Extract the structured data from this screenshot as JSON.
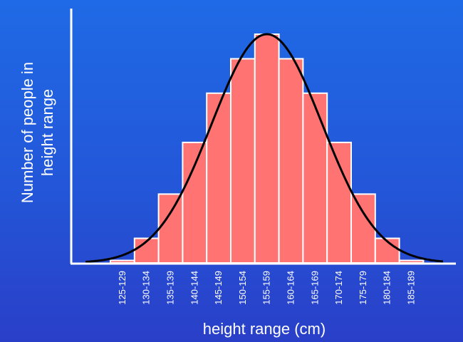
{
  "chart_data": {
    "type": "bar",
    "categories": [
      "125-129",
      "130-134",
      "135-139",
      "140-144",
      "145-149",
      "150-154",
      "155-159",
      "160-164",
      "165-169",
      "170-174",
      "175-179",
      "180-184",
      "185-189"
    ],
    "values": [
      1,
      10,
      28,
      49,
      69,
      83,
      93,
      83,
      69,
      49,
      28,
      10,
      1
    ],
    "xlabel": "height range (cm)",
    "ylabel_lines": [
      "Number of people in",
      "height range"
    ],
    "ylim": [
      0,
      100
    ],
    "overlay": "normal-curve",
    "grid": false,
    "colors": {
      "bar_fill": "#ff7372",
      "bar_stroke": "#ffffff",
      "curve": "#000000",
      "axis": "#ffffff"
    }
  }
}
